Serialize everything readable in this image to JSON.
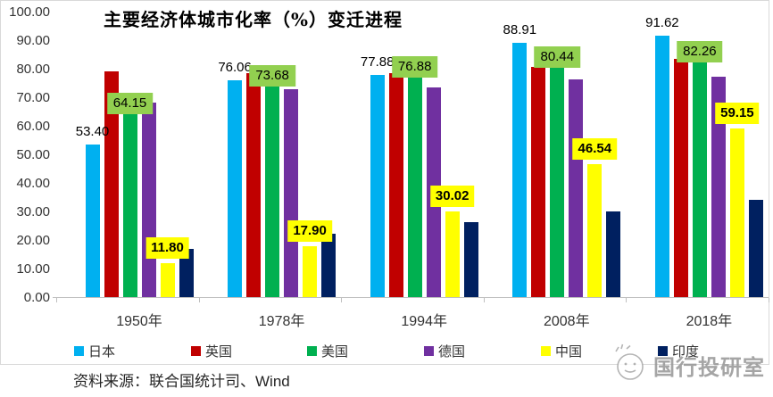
{
  "chart_data": {
    "type": "bar",
    "title": "主要经济体城市化率（%）变迁进程",
    "source": "资料来源：联合国统计司、Wind",
    "watermark": "国行投研室",
    "categories": [
      "1950年",
      "1978年",
      "1994年",
      "2008年",
      "2018年"
    ],
    "y_ticks": [
      "100.00",
      "90.00",
      "80.00",
      "70.00",
      "60.00",
      "50.00",
      "40.00",
      "30.00",
      "20.00",
      "10.00",
      "0.00"
    ],
    "ylim": [
      0,
      100
    ],
    "grid": false,
    "legend_position": "bottom",
    "label_colors": {
      "green_box": "#92D050",
      "yellow_box": "#FFFF00"
    },
    "series": [
      {
        "id": "japan",
        "name": "日本",
        "color": "#00B0F0",
        "values": [
          53.4,
          76.06,
          77.88,
          88.91,
          91.62
        ],
        "labels": [
          "53.40",
          "76.06",
          "77.88",
          "88.91",
          "91.62"
        ],
        "label_style": "plain"
      },
      {
        "id": "uk",
        "name": "英国",
        "color": "#C00000",
        "values": [
          79.0,
          78.3,
          78.4,
          80.7,
          83.4
        ],
        "labels": null,
        "label_style": "none"
      },
      {
        "id": "usa",
        "name": "美国",
        "color": "#00B050",
        "values": [
          64.15,
          73.68,
          76.88,
          80.44,
          82.26
        ],
        "labels": [
          "64.15",
          "73.68",
          "76.88",
          "80.44",
          "82.26"
        ],
        "label_style": "green-box"
      },
      {
        "id": "germany",
        "name": "德国",
        "color": "#7030A0",
        "values": [
          68.1,
          72.8,
          73.5,
          76.3,
          77.3
        ],
        "labels": null,
        "label_style": "none"
      },
      {
        "id": "china",
        "name": "中国",
        "color": "#FFFF00",
        "values": [
          11.8,
          17.9,
          30.02,
          46.54,
          59.15
        ],
        "labels": [
          "11.80",
          "17.90",
          "30.02",
          "46.54",
          "59.15"
        ],
        "label_style": "yellow-box"
      },
      {
        "id": "india",
        "name": "印度",
        "color": "#002060",
        "values": [
          17.0,
          22.3,
          26.4,
          30.0,
          34.0
        ],
        "labels": null,
        "label_style": "none"
      }
    ]
  }
}
